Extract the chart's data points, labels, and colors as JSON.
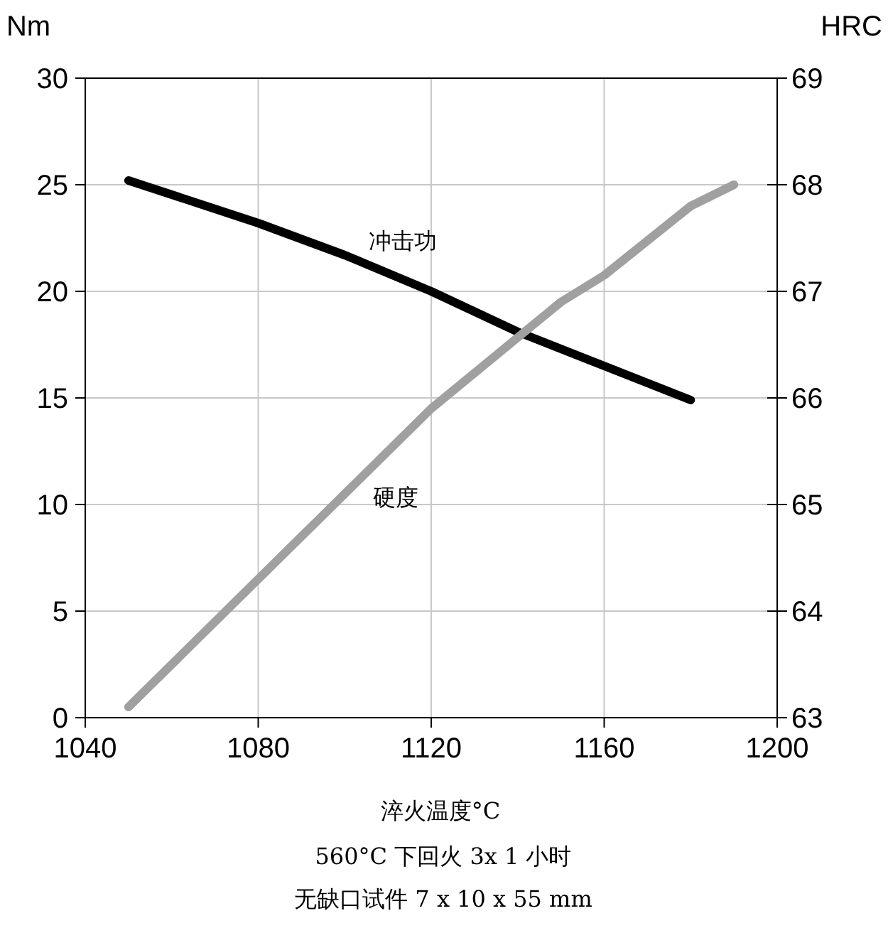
{
  "chart_data": {
    "type": "line",
    "xlabel": "淬火温度°C",
    "ylabel": "Nm",
    "y2label": "HRC",
    "annotations": [
      "560°C 下回火 3x 1 小时",
      "无缺口试件 7 x 10 x 55 mm"
    ],
    "series": [
      {
        "name": "冲击功",
        "color": "#000000",
        "x": [
          1050,
          1080,
          1100,
          1120,
          1140,
          1160,
          1180
        ],
        "values": [
          25.2,
          23.2,
          21.7,
          20.0,
          18.1,
          16.5,
          14.9
        ]
      },
      {
        "name": "硬度",
        "color": "#a0a0a0",
        "axis": "y2",
        "x": [
          1050,
          1080,
          1120,
          1150,
          1160,
          1180,
          1190
        ],
        "values": [
          63.1,
          64.3,
          65.9,
          66.9,
          67.15,
          67.8,
          68.0
        ]
      }
    ],
    "xlim": [
      1040,
      1200
    ],
    "xticks": [
      1040,
      1080,
      1120,
      1160,
      1200
    ],
    "ylim": [
      0,
      30
    ],
    "yticks": [
      0,
      5,
      10,
      15,
      20,
      25,
      30
    ],
    "y2lim": [
      63,
      69
    ],
    "y2ticks": [
      63,
      64,
      65,
      66,
      67,
      68,
      69
    ],
    "grid": true,
    "legend": false,
    "marker": "none",
    "line_style": "solid"
  }
}
